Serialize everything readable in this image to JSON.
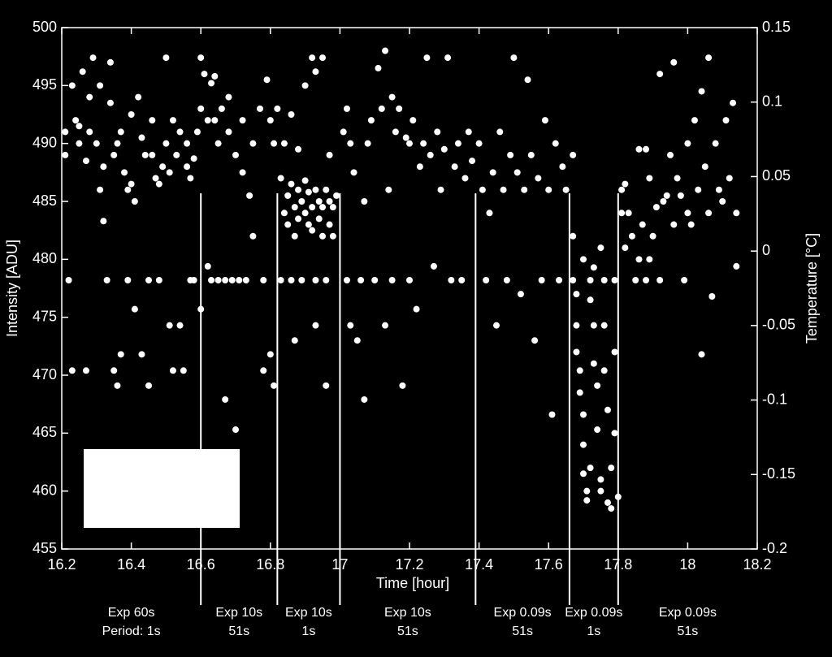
{
  "chart_data": {
    "type": "scatter",
    "xlabel": "Time [hour]",
    "ylabel": "Intensity [ADU]",
    "y2label": "Temperature [°C]",
    "xlim": [
      16.2,
      18.2
    ],
    "xticks": [
      16.2,
      16.4,
      16.6,
      16.8,
      17,
      17.2,
      17.4,
      17.6,
      17.8,
      18,
      18.2
    ],
    "ylim": [
      455,
      500
    ],
    "yticks": [
      455,
      460,
      465,
      470,
      475,
      480,
      485,
      490,
      495,
      500
    ],
    "y2lim": [
      -0.2,
      0.15
    ],
    "y2ticks": [
      -0.2,
      -0.15,
      -0.1,
      -0.05,
      0,
      0.05,
      0.1,
      0.15
    ],
    "color": "#ffffff",
    "vlines": [
      16.6,
      16.82,
      17,
      17.39,
      17.66,
      17.8
    ],
    "segment_labels": [
      [
        "Exp 60s",
        "Period: 1s"
      ],
      [
        "Exp 10s",
        "51s"
      ],
      [
        "Exp 10s",
        "1s"
      ],
      [
        "Exp 10s",
        "51s"
      ],
      [
        "Exp 0.09s",
        "51s"
      ],
      [
        "Exp 0.09s",
        "1s"
      ],
      [
        "Exp 0.09s",
        "51s"
      ]
    ],
    "x": [
      16.21,
      16.21,
      16.22,
      16.23,
      16.23,
      16.24,
      16.25,
      16.25,
      16.26,
      16.27,
      16.27,
      16.28,
      16.28,
      16.29,
      16.3,
      16.31,
      16.31,
      16.32,
      16.32,
      16.33,
      16.34,
      16.34,
      16.35,
      16.35,
      16.36,
      16.36,
      16.37,
      16.37,
      16.38,
      16.39,
      16.39,
      16.4,
      16.4,
      16.41,
      16.41,
      16.42,
      16.43,
      16.43,
      16.44,
      16.45,
      16.45,
      16.46,
      16.46,
      16.47,
      16.48,
      16.48,
      16.49,
      16.5,
      16.5,
      16.51,
      16.51,
      16.52,
      16.52,
      16.53,
      16.54,
      16.54,
      16.55,
      16.56,
      16.56,
      16.57,
      16.57,
      16.58,
      16.58,
      16.59,
      16.6,
      16.6,
      16.6,
      16.61,
      16.62,
      16.62,
      16.63,
      16.63,
      16.64,
      16.64,
      16.65,
      16.65,
      16.66,
      16.67,
      16.67,
      16.68,
      16.68,
      16.69,
      16.7,
      16.7,
      16.71,
      16.72,
      16.72,
      16.73,
      16.74,
      16.75,
      16.75,
      16.77,
      16.78,
      16.78,
      16.79,
      16.8,
      16.8,
      16.81,
      16.81,
      16.82,
      16.83,
      16.83,
      16.84,
      16.85,
      16.85,
      16.86,
      16.86,
      16.87,
      16.87,
      16.88,
      16.88,
      16.89,
      16.89,
      16.9,
      16.9,
      16.91,
      16.91,
      16.92,
      16.92,
      16.93,
      16.93,
      16.94,
      16.94,
      16.95,
      16.95,
      16.96,
      16.96,
      16.97,
      16.97,
      16.98,
      16.98,
      16.99,
      16.84,
      16.86,
      16.88,
      16.9,
      16.92,
      16.93,
      16.95,
      16.87,
      16.93,
      16.96,
      16.97,
      17.01,
      17.02,
      17.02,
      17.03,
      17.03,
      17.04,
      17.05,
      17.06,
      17.07,
      17.07,
      17.08,
      17.09,
      17.1,
      17.11,
      17.12,
      17.13,
      17.13,
      17.14,
      17.15,
      17.15,
      17.16,
      17.17,
      17.18,
      17.19,
      17.2,
      17.2,
      17.21,
      17.22,
      17.23,
      17.24,
      17.25,
      17.26,
      17.27,
      17.28,
      17.29,
      17.3,
      17.31,
      17.32,
      17.33,
      17.34,
      17.35,
      17.36,
      17.37,
      17.38,
      17.4,
      17.41,
      17.42,
      17.43,
      17.44,
      17.45,
      17.46,
      17.47,
      17.48,
      17.49,
      17.5,
      17.51,
      17.52,
      17.53,
      17.54,
      17.55,
      17.56,
      17.57,
      17.58,
      17.59,
      17.6,
      17.61,
      17.62,
      17.63,
      17.64,
      17.65,
      17.67,
      17.67,
      17.68,
      17.68,
      17.68,
      17.69,
      17.69,
      17.7,
      17.7,
      17.7,
      17.71,
      17.71,
      17.72,
      17.72,
      17.72,
      17.73,
      17.73,
      17.74,
      17.74,
      17.75,
      17.75,
      17.76,
      17.76,
      17.76,
      17.77,
      17.77,
      17.78,
      17.78,
      17.79,
      17.79,
      17.79,
      17.8,
      17.67,
      17.7,
      17.75,
      17.73,
      17.81,
      17.81,
      17.82,
      17.82,
      17.83,
      17.84,
      17.85,
      17.86,
      17.86,
      17.87,
      17.88,
      17.88,
      17.89,
      17.89,
      17.9,
      17.91,
      17.92,
      17.92,
      17.93,
      17.94,
      17.95,
      17.96,
      17.96,
      17.97,
      17.98,
      17.99,
      18.0,
      18.0,
      18.01,
      18.02,
      18.03,
      18.04,
      18.04,
      18.05,
      18.06,
      18.06,
      18.07,
      18.08,
      18.09,
      18.1,
      18.11,
      18.12,
      18.13,
      18.14,
      18.14
    ],
    "values": [
      491,
      489,
      478.2,
      470.4,
      495,
      492,
      491.5,
      490,
      496.2,
      488.5,
      470.4,
      491,
      494,
      497.4,
      490,
      486,
      495,
      488,
      483.3,
      478.2,
      497,
      493.5,
      470.4,
      489,
      490,
      469.1,
      471.8,
      491,
      487.5,
      486,
      478.2,
      486.5,
      492.5,
      485,
      475.7,
      494,
      490.5,
      471.8,
      489,
      478.2,
      469.1,
      489,
      492,
      487,
      478.2,
      486.5,
      488,
      497.4,
      490,
      474.3,
      487.5,
      492,
      470.4,
      489,
      474.3,
      491,
      470.4,
      490,
      488,
      478.2,
      487,
      478.2,
      488.7,
      491,
      497.4,
      475.7,
      493,
      496,
      479.4,
      492,
      495.2,
      478.2,
      495.8,
      492,
      490,
      478.2,
      493,
      467.9,
      478.2,
      491,
      494,
      478.2,
      465.3,
      489,
      478.2,
      487.5,
      492,
      478.2,
      485.5,
      482,
      490,
      493,
      478.2,
      470.4,
      495.5,
      492,
      471.8,
      490,
      469.1,
      493,
      487,
      478.2,
      484,
      485.5,
      483,
      486.5,
      478.2,
      484.5,
      482,
      486,
      483.5,
      485,
      478.2,
      486.8,
      484,
      483,
      485.8,
      484.5,
      482.5,
      486,
      478.2,
      485,
      483.5,
      484.5,
      482,
      486,
      478.2,
      485,
      483,
      482,
      484.5,
      485.5,
      490,
      492.5,
      489.5,
      495,
      497.4,
      496.2,
      497.4,
      473,
      474.3,
      469.1,
      489,
      491,
      493,
      478.2,
      490,
      474.3,
      487.5,
      473,
      478.2,
      485,
      467.9,
      490,
      492,
      478.2,
      496.5,
      493,
      498,
      474.3,
      486,
      494,
      478.2,
      491,
      493,
      469.1,
      490.5,
      490,
      478.2,
      492,
      475.7,
      488,
      490,
      497.4,
      489,
      479.4,
      491,
      486,
      489.5,
      497.4,
      478.2,
      488,
      490,
      478.2,
      487,
      491,
      488.5,
      490,
      486,
      478.2,
      484,
      487.5,
      474.3,
      491,
      486,
      478.2,
      489,
      497.4,
      487.5,
      477,
      486,
      495.5,
      489,
      473,
      487,
      478.2,
      492,
      486,
      466.6,
      490,
      478.2,
      488,
      486,
      482,
      478.2,
      477,
      474.3,
      472,
      470.4,
      468.5,
      466.6,
      464,
      461.5,
      460,
      459.2,
      462,
      478.2,
      476.5,
      474.3,
      471,
      469.1,
      465.3,
      461,
      460,
      478.2,
      474.3,
      470.4,
      467,
      459,
      458.5,
      462,
      478.2,
      472,
      465,
      459.5,
      489,
      480,
      481,
      479.3,
      486,
      484,
      481,
      486.5,
      484,
      482,
      478.2,
      480,
      489.5,
      483,
      478.2,
      489.5,
      480,
      487,
      482,
      484.5,
      478.2,
      496,
      485,
      485.5,
      489,
      483,
      497,
      487,
      485.5,
      478.2,
      484,
      490,
      483,
      492,
      486,
      494.5,
      471.8,
      488,
      497.4,
      484,
      476.8,
      490,
      486,
      485,
      492,
      487,
      493.5,
      484,
      479.4
    ]
  }
}
